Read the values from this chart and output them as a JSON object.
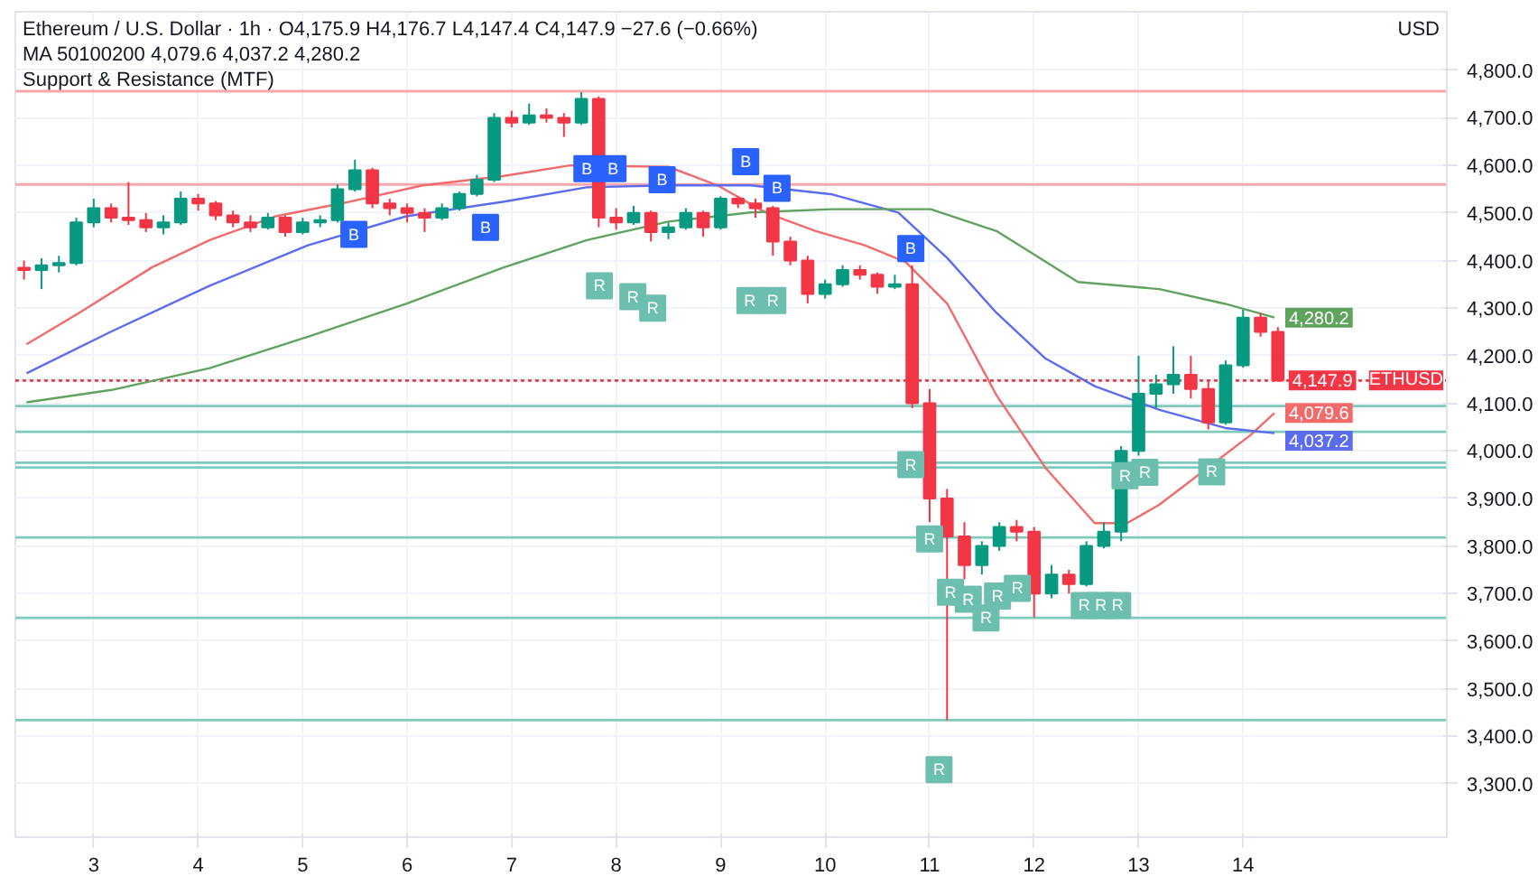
{
  "chart_data": {
    "type": "candlestick",
    "title": "Ethereum / U.S. Dollar · 1h · O4,175.9 H4,176.7 L4,147.4 C4,147.9 −27.6 (−0.66%)",
    "subtitle": "MA 50100200 4,079.6 4,037.2 4,280.2",
    "ylabel": "USD",
    "annotations": [
      "Support & Resistance (MTF)",
      {
        "text": "4,147.9",
        "x": 14.333,
        "y": 4147.9
      }
    ],
    "x": [
      2.333,
      2.5,
      2.667,
      2.833,
      3.0,
      3.167,
      3.333,
      3.5,
      3.667,
      3.833,
      4.0,
      4.167,
      4.333,
      4.5,
      4.667,
      4.833,
      5.0,
      5.167,
      5.333,
      5.5,
      5.667,
      5.833,
      6.0,
      6.167,
      6.333,
      6.5,
      6.667,
      6.833,
      7.0,
      7.167,
      7.333,
      7.5,
      7.667,
      7.833,
      8.0,
      8.167,
      8.333,
      8.5,
      8.667,
      8.833,
      9.0,
      9.167,
      9.333,
      9.5,
      9.667,
      9.833,
      10.0,
      10.167,
      10.333,
      10.5,
      10.667,
      10.833,
      11.0,
      11.167,
      11.333,
      11.5,
      11.667,
      11.833,
      12.0,
      12.167,
      12.333,
      12.5,
      12.667,
      12.833,
      13.0,
      13.167,
      13.333,
      13.5,
      13.667,
      13.833,
      14.0,
      14.167,
      14.333
    ],
    "ohlc": [
      [
        4385,
        4400,
        4360,
        4380
      ],
      [
        4380,
        4405,
        4340,
        4390
      ],
      [
        4390,
        4410,
        4375,
        4395
      ],
      [
        4395,
        4490,
        4390,
        4480
      ],
      [
        4480,
        4530,
        4470,
        4510
      ],
      [
        4510,
        4520,
        4480,
        4490
      ],
      [
        4490,
        4565,
        4475,
        4485
      ],
      [
        4485,
        4500,
        4460,
        4470
      ],
      [
        4470,
        4495,
        4455,
        4480
      ],
      [
        4480,
        4545,
        4475,
        4530
      ],
      [
        4530,
        4540,
        4505,
        4520
      ],
      [
        4520,
        4525,
        4485,
        4495
      ],
      [
        4495,
        4505,
        4470,
        4480
      ],
      [
        4480,
        4495,
        4460,
        4470
      ],
      [
        4470,
        4500,
        4465,
        4490
      ],
      [
        4490,
        4495,
        4450,
        4460
      ],
      [
        4460,
        4490,
        4455,
        4480
      ],
      [
        4480,
        4495,
        4470,
        4485
      ],
      [
        4485,
        4560,
        4480,
        4550
      ],
      [
        4550,
        4612,
        4545,
        4590
      ],
      [
        4590,
        4595,
        4510,
        4520
      ],
      [
        4520,
        4530,
        4495,
        4510
      ],
      [
        4510,
        4520,
        4480,
        4500
      ],
      [
        4500,
        4510,
        4460,
        4490
      ],
      [
        4490,
        4520,
        4485,
        4510
      ],
      [
        4510,
        4545,
        4505,
        4540
      ],
      [
        4540,
        4580,
        4535,
        4570
      ],
      [
        4570,
        4710,
        4565,
        4700
      ],
      [
        4700,
        4715,
        4680,
        4690
      ],
      [
        4690,
        4730,
        4685,
        4705
      ],
      [
        4705,
        4720,
        4690,
        4700
      ],
      [
        4700,
        4710,
        4660,
        4690
      ],
      [
        4690,
        4754,
        4685,
        4740
      ],
      [
        4740,
        4745,
        4470,
        4490
      ],
      [
        4490,
        4510,
        4465,
        4480
      ],
      [
        4480,
        4515,
        4475,
        4500
      ],
      [
        4500,
        4505,
        4440,
        4460
      ],
      [
        4460,
        4480,
        4445,
        4470
      ],
      [
        4470,
        4510,
        4465,
        4500
      ],
      [
        4500,
        4505,
        4450,
        4470
      ],
      [
        4470,
        4535,
        4465,
        4530
      ],
      [
        4530,
        4535,
        4510,
        4520
      ],
      [
        4520,
        4530,
        4490,
        4510
      ],
      [
        4510,
        4515,
        4410,
        4440
      ],
      [
        4440,
        4450,
        4390,
        4400
      ],
      [
        4400,
        4410,
        4310,
        4330
      ],
      [
        4330,
        4360,
        4320,
        4350
      ],
      [
        4350,
        4390,
        4345,
        4380
      ],
      [
        4380,
        4390,
        4360,
        4370
      ],
      [
        4370,
        4375,
        4330,
        4345
      ],
      [
        4345,
        4370,
        4340,
        4350
      ],
      [
        4350,
        4390,
        4090,
        4100
      ],
      [
        4100,
        4130,
        3850,
        3900
      ],
      [
        3900,
        3920,
        3434,
        3820
      ],
      [
        3820,
        3850,
        3730,
        3760
      ],
      [
        3760,
        3810,
        3740,
        3800
      ],
      [
        3800,
        3850,
        3790,
        3840
      ],
      [
        3840,
        3855,
        3810,
        3830
      ],
      [
        3830,
        3840,
        3650,
        3700
      ],
      [
        3700,
        3760,
        3690,
        3740
      ],
      [
        3740,
        3750,
        3700,
        3720
      ],
      [
        3720,
        3810,
        3715,
        3800
      ],
      [
        3800,
        3850,
        3795,
        3830
      ],
      [
        3830,
        4010,
        3810,
        4000
      ],
      [
        4000,
        4200,
        3990,
        4120
      ],
      [
        4120,
        4160,
        4090,
        4140
      ],
      [
        4140,
        4220,
        4120,
        4160
      ],
      [
        4160,
        4200,
        4110,
        4130
      ],
      [
        4130,
        4150,
        4045,
        4060
      ],
      [
        4060,
        4190,
        4055,
        4180
      ],
      [
        4180,
        4297,
        4175,
        4280
      ],
      [
        4280,
        4290,
        4240,
        4250
      ],
      [
        4250,
        4260,
        4145,
        4147.9
      ]
    ],
    "colors": [
      "#f23645",
      "#089981",
      "#089981",
      "#089981",
      "#089981",
      "#f23645",
      "#f23645",
      "#f23645",
      "#089981",
      "#089981",
      "#f23645",
      "#f23645",
      "#f23645",
      "#f23645",
      "#089981",
      "#f23645",
      "#089981",
      "#089981",
      "#089981",
      "#089981",
      "#f23645",
      "#f23645",
      "#f23645",
      "#f23645",
      "#089981",
      "#089981",
      "#089981",
      "#089981",
      "#f23645",
      "#089981",
      "#f23645",
      "#f23645",
      "#089981",
      "#f23645",
      "#f23645",
      "#089981",
      "#f23645",
      "#089981",
      "#089981",
      "#f23645",
      "#089981",
      "#f23645",
      "#f23645",
      "#f23645",
      "#f23645",
      "#f23645",
      "#089981",
      "#089981",
      "#f23645",
      "#f23645",
      "#089981",
      "#f23645",
      "#f23645",
      "#f23645",
      "#f23645",
      "#089981",
      "#089981",
      "#f23645",
      "#f23645",
      "#089981",
      "#f23645",
      "#089981",
      "#089981",
      "#089981",
      "#089981",
      "#089981",
      "#089981",
      "#f23645",
      "#f23645",
      "#089981",
      "#089981",
      "#f23645",
      "#f23645"
    ],
    "series": [
      {
        "type": "line",
        "color": "#f26b6b",
        "x": [
          2.357,
          2.86,
          3.56,
          4.11,
          4.74,
          5.37,
          6.15,
          6.93,
          7.56,
          8.5,
          8.97,
          9.44,
          9.91,
          10.38,
          10.77,
          11.17,
          11.64,
          12.11,
          12.58,
          12.89,
          13.2,
          14.07,
          14.3
        ],
        "values": [
          4224,
          4290,
          4386,
          4443,
          4493,
          4520,
          4558,
          4578,
          4600,
          4597,
          4558,
          4500,
          4462,
          4432,
          4397,
          4309,
          4117,
          3964,
          3848,
          3848,
          3887,
          4033,
          4079.6
        ],
        "value_labels": [
          null,
          null,
          null,
          null,
          null,
          null,
          null,
          null,
          null,
          null,
          null,
          null,
          null,
          null,
          null,
          null,
          null,
          null,
          null,
          null,
          null,
          null,
          "4,079.6"
        ]
      },
      {
        "type": "line",
        "color": "#5b6cf0",
        "x": [
          2.357,
          3.17,
          4.11,
          5.05,
          5.99,
          6.93,
          7.72,
          8.5,
          9.29,
          10.07,
          10.7,
          11.17,
          11.64,
          12.11,
          12.58,
          13.2,
          13.83,
          14.3
        ],
        "values": [
          4163,
          4251,
          4347,
          4432,
          4493,
          4524,
          4554,
          4558,
          4558,
          4539,
          4501,
          4405,
          4290,
          4194,
          4136,
          4086,
          4048,
          4037.2
        ],
        "value_labels": [
          null,
          null,
          null,
          null,
          null,
          null,
          null,
          null,
          null,
          null,
          null,
          null,
          null,
          null,
          null,
          null,
          null,
          "4,037.2"
        ]
      },
      {
        "type": "line",
        "color": "#5fa35f",
        "x": [
          2.357,
          3.17,
          4.11,
          5.05,
          5.99,
          6.93,
          7.72,
          8.5,
          9.29,
          10.07,
          11.01,
          11.64,
          12.42,
          13.2,
          13.83,
          14.3
        ],
        "values": [
          4102,
          4128,
          4174,
          4240,
          4309,
          4386,
          4443,
          4482,
          4501,
          4508,
          4508,
          4462,
          4355,
          4340,
          4309,
          4280.2
        ],
        "value_labels": [
          null,
          null,
          null,
          null,
          null,
          null,
          null,
          null,
          null,
          null,
          null,
          null,
          null,
          null,
          null,
          "4,280.2"
        ]
      },
      {
        "type": "scatter",
        "marker": "square",
        "color": "#2962ff",
        "x": [
          5.49,
          6.75,
          7.72,
          7.97,
          8.44,
          9.24,
          9.54,
          10.82
        ],
        "values": [
          4455,
          4470,
          4593,
          4593,
          4570,
          4608,
          4552,
          4425
        ],
        "value_labels": [
          "B",
          "B",
          "B",
          "B",
          "B",
          "B",
          "B",
          "B"
        ]
      },
      {
        "type": "scatter",
        "marker": "square",
        "color": "#6cbfae",
        "x": [
          7.84,
          8.16,
          8.35,
          9.28,
          9.5,
          10.82,
          11.0,
          11.09,
          11.2,
          11.37,
          11.54,
          11.65,
          11.84,
          12.48,
          12.64,
          12.8,
          12.87,
          13.06,
          13.7
        ],
        "values": [
          4347,
          4324,
          4300,
          4316,
          4316,
          3971,
          3815,
          3330,
          3703,
          3688,
          3649,
          3695,
          3711,
          3675,
          3675,
          3675,
          3948,
          3955,
          3956
        ],
        "value_labels": [
          "R",
          "R",
          "R",
          "R",
          "R",
          "R",
          "R",
          "R",
          "R",
          "R",
          "R",
          "R",
          "R",
          "R",
          "R",
          "R",
          "R",
          "R",
          "R"
        ]
      }
    ],
    "ref_lines": [
      {
        "axis": "y",
        "value": 4756,
        "color": "#f7a8ae",
        "line_style": "solid"
      },
      {
        "axis": "y",
        "value": 4560,
        "color": "#f7a8ae",
        "line_style": "solid"
      },
      {
        "axis": "y",
        "value": 4147.9,
        "label": "ETHUSD",
        "color": "#f23645",
        "line_style": "dotted"
      },
      {
        "axis": "y",
        "value": 4094,
        "color": "#7fcbbb",
        "line_style": "solid"
      },
      {
        "axis": "y",
        "value": 4040,
        "color": "#7fcbbb",
        "line_style": "solid"
      },
      {
        "axis": "y",
        "value": 3975,
        "color": "#7fcbbb",
        "line_style": "solid"
      },
      {
        "axis": "y",
        "value": 3965,
        "color": "#7fcbbb",
        "line_style": "solid"
      },
      {
        "axis": "y",
        "value": 3818,
        "color": "#7fcbbb",
        "line_style": "solid"
      },
      {
        "axis": "y",
        "value": 3649,
        "color": "#7fcbbb",
        "line_style": "solid"
      },
      {
        "axis": "y",
        "value": 3434,
        "color": "#7fcbbb",
        "line_style": "solid"
      }
    ],
    "xlim": [
      2.25,
      15.95
    ],
    "ylim": [
      3188,
      4923
    ],
    "xticks": [
      3,
      4,
      5,
      6,
      7,
      8,
      9,
      10,
      11,
      12,
      13,
      14
    ],
    "yticks": [
      {
        "value": 3300,
        "label": "3,300.0"
      },
      {
        "value": 3400,
        "label": "3,400.0"
      },
      {
        "value": 3500,
        "label": "3,500.0"
      },
      {
        "value": 3600,
        "label": "3,600.0"
      },
      {
        "value": 3700,
        "label": "3,700.0"
      },
      {
        "value": 3800,
        "label": "3,800.0"
      },
      {
        "value": 3900,
        "label": "3,900.0"
      },
      {
        "value": 4000,
        "label": "4,000.0"
      },
      {
        "value": 4100,
        "label": "4,100.0"
      },
      {
        "value": 4200,
        "label": "4,200.0"
      },
      {
        "value": 4300,
        "label": "4,300.0"
      },
      {
        "value": 4400,
        "label": "4,400.0"
      },
      {
        "value": 4500,
        "label": "4,500.0"
      },
      {
        "value": 4600,
        "label": "4,600.0"
      },
      {
        "value": 4700,
        "label": "4,700.0"
      },
      {
        "value": 4800,
        "label": "4,800.0"
      }
    ],
    "grid": true
  }
}
